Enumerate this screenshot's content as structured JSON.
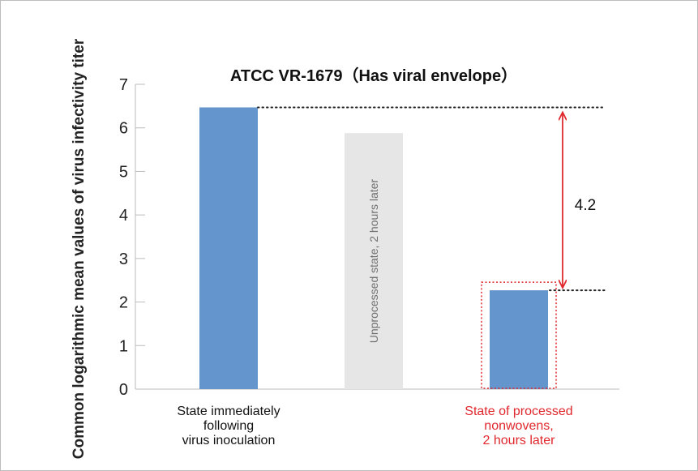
{
  "chart_data": {
    "type": "bar",
    "title": "ATCC VR-1679（Has viral envelope）",
    "ylabel": "Common logarithmic mean values of virus infectivity titer",
    "xlabel": "",
    "ylim": [
      0,
      7
    ],
    "yticks": [
      "0",
      "1",
      "2",
      "3",
      "4",
      "5",
      "6",
      "7"
    ],
    "categories": [
      [
        "State immediately",
        "following",
        "virus inoculation"
      ],
      [
        "Unprocessed state, 2 hours later"
      ],
      [
        "State of processed",
        "nonwovens,",
        "2 hours later"
      ]
    ],
    "values": [
      6.47,
      5.88,
      2.27
    ],
    "colors": [
      "#6595cd",
      "#e6e6e6",
      "#6595cd"
    ],
    "highlight_color": "#e0282e",
    "reduction_label": "4.2",
    "grid": false,
    "legend": "none"
  }
}
